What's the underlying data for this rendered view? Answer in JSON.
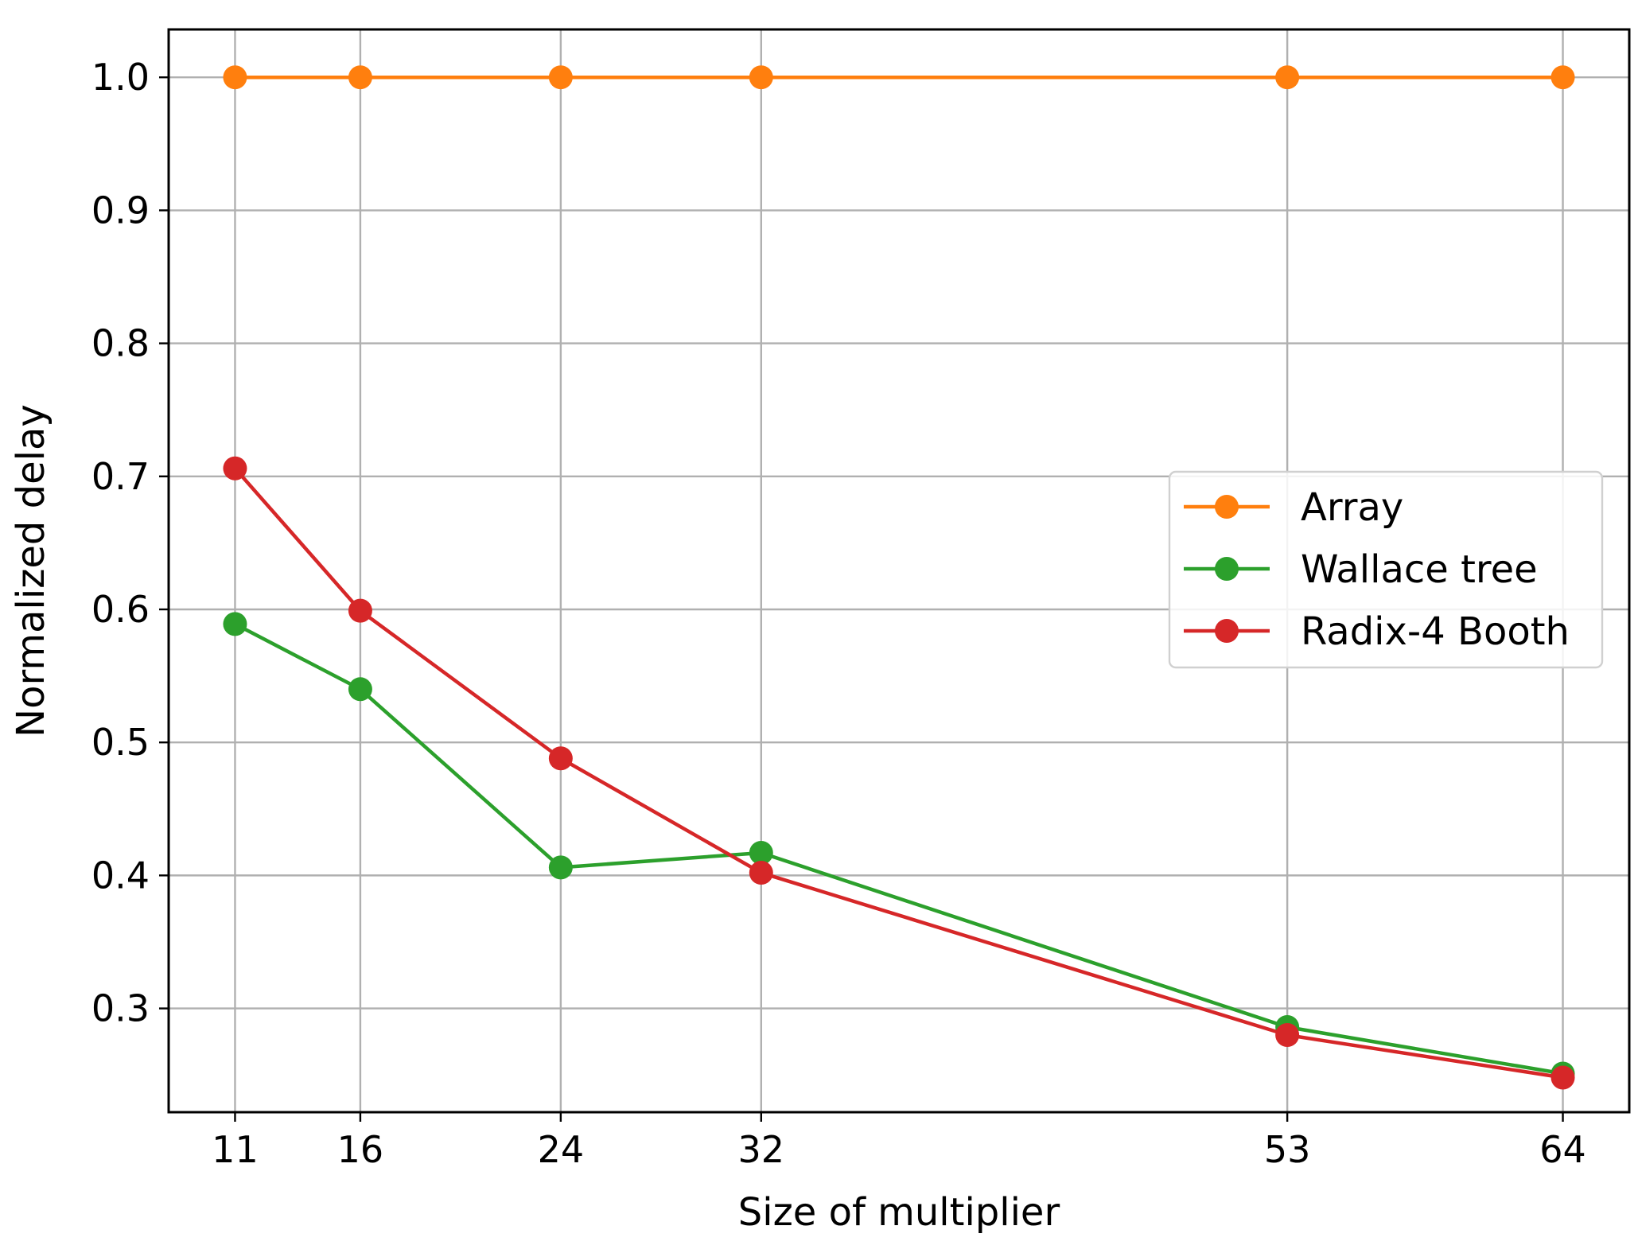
{
  "chart_data": {
    "type": "line",
    "title": "",
    "xlabel": "Size of multiplier",
    "ylabel": "Normalized delay",
    "x": [
      11,
      16,
      24,
      32,
      53,
      64
    ],
    "x_tick_labels": [
      "11",
      "16",
      "24",
      "32",
      "53",
      "64"
    ],
    "y_ticks": [
      0.3,
      0.4,
      0.5,
      0.6,
      0.7,
      0.8,
      0.9,
      1.0
    ],
    "y_tick_labels": [
      "0.3",
      "0.4",
      "0.5",
      "0.6",
      "0.7",
      "0.8",
      "0.9",
      "1.0"
    ],
    "xlim": [
      8.35,
      66.65
    ],
    "ylim": [
      0.222,
      1.036
    ],
    "grid": true,
    "legend_position": "center-right",
    "series": [
      {
        "name": "Array",
        "color": "#ff7f0e",
        "values": [
          1.0,
          1.0,
          1.0,
          1.0,
          1.0,
          1.0
        ]
      },
      {
        "name": "Wallace tree",
        "color": "#2ca02c",
        "values": [
          0.589,
          0.54,
          0.406,
          0.417,
          0.286,
          0.251
        ]
      },
      {
        "name": "Radix-4 Booth",
        "color": "#d62728",
        "values": [
          0.706,
          0.599,
          0.488,
          0.402,
          0.28,
          0.248
        ]
      }
    ]
  }
}
